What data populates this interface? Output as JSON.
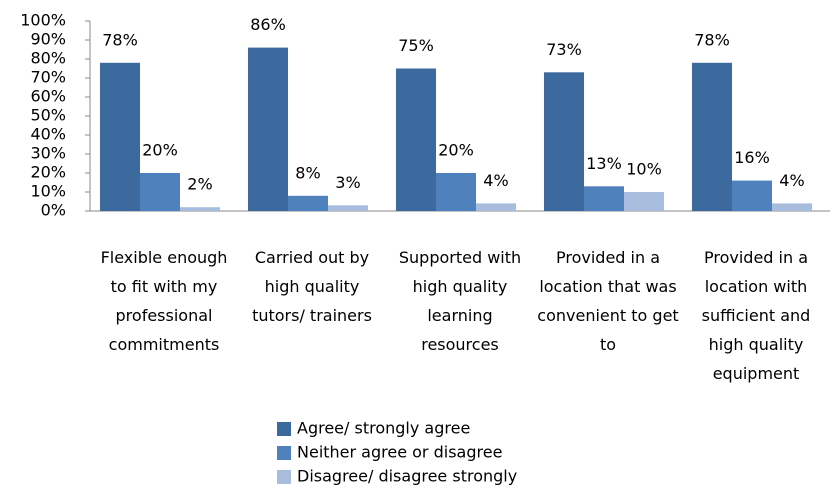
{
  "chart_data": {
    "type": "bar",
    "categories": [
      "Flexible enough to fit with my professional commitments",
      "Carried out by high quality tutors/ trainers",
      "Supported with high quality learning resources",
      "Provided in a location that was convenient to get to",
      "Provided in a location with sufficient and high quality equipment"
    ],
    "series": [
      {
        "name": "Agree/ strongly agree",
        "color": "#3d6a9e",
        "values": [
          78,
          86,
          75,
          73,
          78
        ],
        "value_labels": [
          "78%",
          "86%",
          "75%",
          "73%",
          "78%"
        ]
      },
      {
        "name": "Neither agree or disagree",
        "color": "#4f81bd",
        "values": [
          20,
          8,
          20,
          13,
          16
        ],
        "value_labels": [
          "20%",
          "8%",
          "20%",
          "13%",
          "16%"
        ]
      },
      {
        "name": "Disagree/ disagree strongly",
        "color": "#a8bddd",
        "values": [
          2,
          3,
          4,
          10,
          4
        ],
        "value_labels": [
          "2%",
          "3%",
          "4%",
          "10%",
          "4%"
        ]
      }
    ],
    "ylim": [
      0,
      100
    ],
    "yticks": [
      {
        "value": 0,
        "label": "0%"
      },
      {
        "value": 10,
        "label": "10%"
      },
      {
        "value": 20,
        "label": "20%"
      },
      {
        "value": 30,
        "label": "30%"
      },
      {
        "value": 40,
        "label": "40%"
      },
      {
        "value": 50,
        "label": "50%"
      },
      {
        "value": 60,
        "label": "60%"
      },
      {
        "value": 70,
        "label": "70%"
      },
      {
        "value": 80,
        "label": "80%"
      },
      {
        "value": 90,
        "label": "90%"
      },
      {
        "value": 100,
        "label": "100%"
      }
    ],
    "grid": false,
    "legend": "bottom"
  }
}
